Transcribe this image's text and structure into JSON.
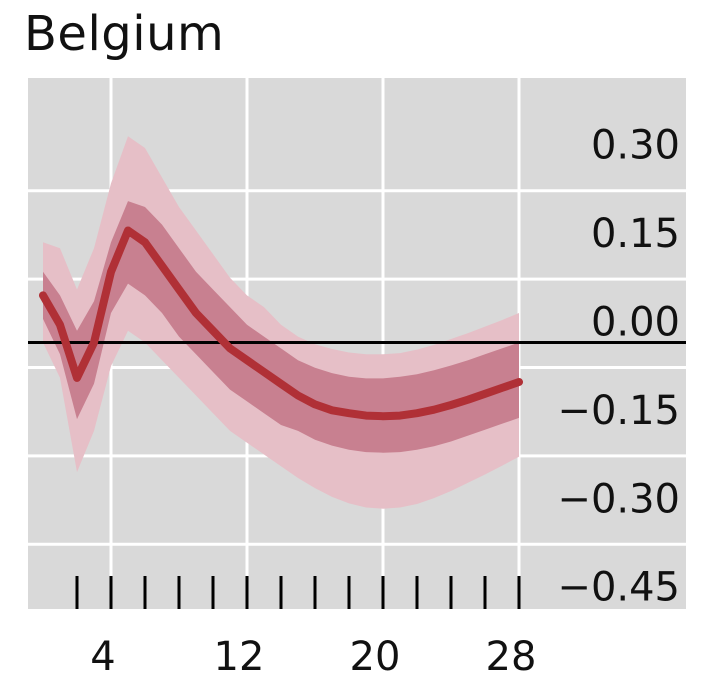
{
  "chart_data": {
    "type": "line",
    "title": "Belgium",
    "xlabel": "",
    "ylabel": "",
    "x_ticks": [
      4,
      12,
      20,
      28
    ],
    "x_minor_ticks": [
      2,
      4,
      6,
      8,
      10,
      12,
      14,
      16,
      18,
      20,
      22,
      24,
      26,
      28
    ],
    "y_ticks": [
      0.3,
      0.15,
      0.0,
      -0.15,
      -0.3,
      -0.45
    ],
    "y_tick_labels": [
      "0.30",
      "0.15",
      "0.00",
      "−0.15",
      "−0.30",
      "−0.45"
    ],
    "xlim": [
      0,
      30
    ],
    "ylim": [
      -0.49,
      0.44
    ],
    "y_axis_position": "right",
    "grid": true,
    "zero_line": true,
    "x": [
      0,
      1,
      2,
      3,
      4,
      5,
      6,
      7,
      8,
      9,
      10,
      11,
      12,
      13,
      14,
      15,
      16,
      17,
      18,
      19,
      20,
      21,
      22,
      23,
      24,
      25,
      26,
      27,
      28
    ],
    "series": [
      {
        "name": "",
        "role": "median",
        "values": [
          0.08,
          0.03,
          -0.06,
          0.0,
          0.12,
          0.19,
          0.17,
          0.13,
          0.09,
          0.05,
          0.02,
          -0.01,
          -0.03,
          -0.05,
          -0.07,
          -0.09,
          -0.105,
          -0.115,
          -0.12,
          -0.124,
          -0.125,
          -0.124,
          -0.12,
          -0.114,
          -0.106,
          -0.097,
          -0.087,
          -0.077,
          -0.067
        ]
      },
      {
        "name": "",
        "role": "inner_band_upper",
        "values": [
          0.12,
          0.08,
          0.02,
          0.07,
          0.17,
          0.24,
          0.23,
          0.2,
          0.16,
          0.12,
          0.09,
          0.06,
          0.03,
          0.01,
          -0.01,
          -0.03,
          -0.043,
          -0.052,
          -0.058,
          -0.061,
          -0.061,
          -0.058,
          -0.054,
          -0.047,
          -0.039,
          -0.03,
          -0.02,
          -0.01,
          0.0
        ]
      },
      {
        "name": "",
        "role": "inner_band_lower",
        "values": [
          0.04,
          -0.02,
          -0.13,
          -0.07,
          0.05,
          0.1,
          0.08,
          0.05,
          0.01,
          -0.02,
          -0.05,
          -0.08,
          -0.1,
          -0.12,
          -0.14,
          -0.15,
          -0.165,
          -0.175,
          -0.182,
          -0.186,
          -0.187,
          -0.186,
          -0.182,
          -0.176,
          -0.168,
          -0.158,
          -0.148,
          -0.138,
          -0.128
        ]
      },
      {
        "name": "",
        "role": "outer_band_upper",
        "values": [
          0.17,
          0.16,
          0.09,
          0.16,
          0.27,
          0.35,
          0.33,
          0.28,
          0.23,
          0.19,
          0.15,
          0.11,
          0.08,
          0.06,
          0.03,
          0.01,
          -0.003,
          -0.011,
          -0.017,
          -0.02,
          -0.02,
          -0.018,
          -0.012,
          -0.004,
          0.006,
          0.016,
          0.027,
          0.038,
          0.05
        ]
      },
      {
        "name": "",
        "role": "outer_band_lower",
        "values": [
          0.0,
          -0.06,
          -0.22,
          -0.15,
          -0.04,
          0.02,
          0.0,
          -0.03,
          -0.06,
          -0.09,
          -0.12,
          -0.15,
          -0.17,
          -0.19,
          -0.21,
          -0.23,
          -0.247,
          -0.262,
          -0.273,
          -0.28,
          -0.282,
          -0.28,
          -0.274,
          -0.264,
          -0.252,
          -0.238,
          -0.224,
          -0.209,
          -0.194
        ]
      }
    ],
    "colors": {
      "plot_bg": "#d9d9d9",
      "grid": "#ffffff",
      "median": "#b03036",
      "inner_band": "#c88090",
      "outer_band": "#e6bfc7",
      "zero_line": "#000000",
      "ticks": "#000000",
      "text": "#111111"
    },
    "legend": "none"
  }
}
